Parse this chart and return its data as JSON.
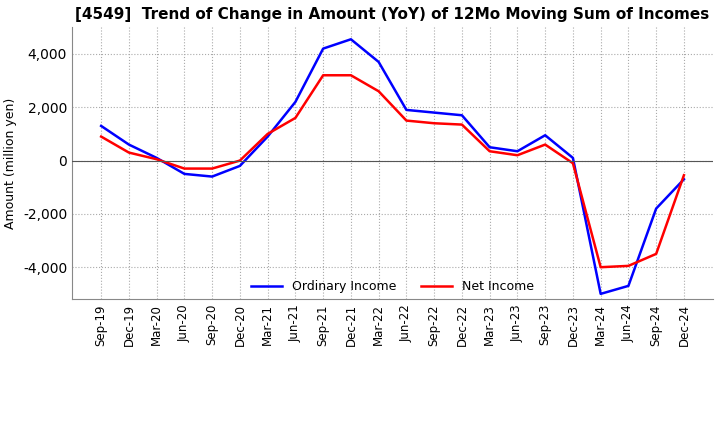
{
  "title": "[4549]  Trend of Change in Amount (YoY) of 12Mo Moving Sum of Incomes",
  "ylabel": "Amount (million yen)",
  "x_labels": [
    "Sep-19",
    "Dec-19",
    "Mar-20",
    "Jun-20",
    "Sep-20",
    "Dec-20",
    "Mar-21",
    "Jun-21",
    "Sep-21",
    "Dec-21",
    "Mar-22",
    "Jun-22",
    "Sep-22",
    "Dec-22",
    "Mar-23",
    "Jun-23",
    "Sep-23",
    "Dec-23",
    "Mar-24",
    "Jun-24",
    "Sep-24",
    "Dec-24"
  ],
  "ordinary_income": [
    1300,
    600,
    100,
    -500,
    -600,
    -200,
    900,
    2200,
    4200,
    4550,
    3700,
    1900,
    1800,
    1700,
    500,
    350,
    950,
    100,
    -5000,
    -4700,
    -1800,
    -700
  ],
  "net_income": [
    900,
    300,
    50,
    -300,
    -300,
    0,
    1000,
    1600,
    3200,
    3200,
    2600,
    1500,
    1400,
    1350,
    350,
    200,
    600,
    -100,
    -4000,
    -3950,
    -3500,
    -550
  ],
  "ylim": [
    -5200,
    5000
  ],
  "yticks": [
    -4000,
    -2000,
    0,
    2000,
    4000
  ],
  "ordinary_color": "#0000FF",
  "net_color": "#FF0000",
  "background_color": "#FFFFFF",
  "grid_color": "#AAAAAA",
  "title_fontsize": 11,
  "label_fontsize": 9,
  "tick_fontsize": 8.5
}
